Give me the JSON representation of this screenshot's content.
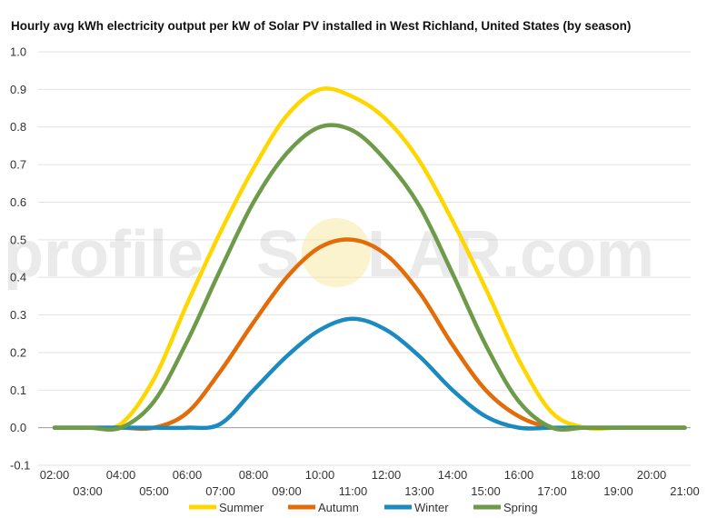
{
  "chart_data": {
    "type": "line",
    "title": "Hourly avg kWh electricity output per kW of Solar PV installed in West Richland, United States (by season)",
    "xlabel": "",
    "ylabel": "",
    "ylim": [
      -0.1,
      1.0
    ],
    "yticks": [
      "-0.1",
      "0.0",
      "0.1",
      "0.2",
      "0.3",
      "0.4",
      "0.5",
      "0.6",
      "0.7",
      "0.8",
      "0.9",
      "1.0"
    ],
    "x": [
      "02:00",
      "03:00",
      "04:00",
      "05:00",
      "06:00",
      "07:00",
      "08:00",
      "09:00",
      "10:00",
      "11:00",
      "12:00",
      "13:00",
      "14:00",
      "15:00",
      "16:00",
      "17:00",
      "18:00",
      "19:00",
      "20:00",
      "21:00"
    ],
    "grid": true,
    "legend_position": "bottom",
    "series": [
      {
        "name": "Summer",
        "color": "#FFD700",
        "values": [
          0.0,
          0.0,
          0.01,
          0.13,
          0.33,
          0.52,
          0.69,
          0.83,
          0.9,
          0.88,
          0.82,
          0.71,
          0.55,
          0.37,
          0.18,
          0.04,
          0.0,
          0.0,
          0.0,
          0.0
        ]
      },
      {
        "name": "Autumn",
        "color": "#E36C09",
        "values": [
          0.0,
          0.0,
          0.0,
          0.0,
          0.04,
          0.15,
          0.28,
          0.4,
          0.48,
          0.5,
          0.46,
          0.36,
          0.22,
          0.1,
          0.03,
          0.0,
          0.0,
          0.0,
          0.0,
          0.0
        ]
      },
      {
        "name": "Winter",
        "color": "#1A8AC0",
        "values": [
          0.0,
          0.0,
          0.0,
          0.0,
          0.0,
          0.01,
          0.1,
          0.19,
          0.26,
          0.29,
          0.26,
          0.19,
          0.1,
          0.03,
          0.0,
          0.0,
          0.0,
          0.0,
          0.0,
          0.0
        ]
      },
      {
        "name": "Spring",
        "color": "#6E9B4A",
        "values": [
          0.0,
          0.0,
          0.0,
          0.07,
          0.23,
          0.42,
          0.6,
          0.73,
          0.8,
          0.79,
          0.71,
          0.59,
          0.41,
          0.22,
          0.07,
          0.0,
          0.0,
          0.0,
          0.0,
          0.0
        ]
      }
    ]
  },
  "watermark": {
    "text_left": "profile",
    "text_mid": "S",
    "text_right": "LAR.com"
  }
}
